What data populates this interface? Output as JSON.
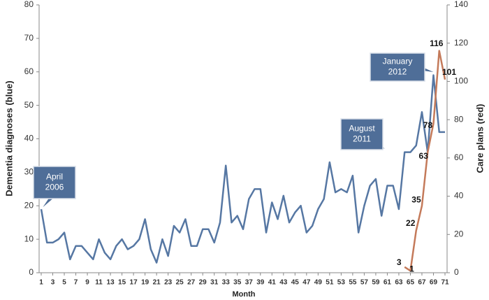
{
  "chart_data": {
    "type": "line",
    "x": [
      1,
      2,
      3,
      4,
      5,
      6,
      7,
      8,
      9,
      10,
      11,
      12,
      13,
      14,
      15,
      16,
      17,
      18,
      19,
      20,
      21,
      22,
      23,
      24,
      25,
      26,
      27,
      28,
      29,
      30,
      31,
      32,
      33,
      34,
      35,
      36,
      37,
      38,
      39,
      40,
      41,
      42,
      43,
      44,
      45,
      46,
      47,
      48,
      49,
      50,
      51,
      52,
      53,
      54,
      55,
      56,
      57,
      58,
      59,
      60,
      61,
      62,
      63,
      64,
      65,
      66,
      67,
      68,
      69,
      70,
      71
    ],
    "xlim": [
      1,
      71
    ],
    "xticks": [
      1,
      3,
      5,
      7,
      9,
      11,
      13,
      15,
      17,
      19,
      21,
      23,
      25,
      27,
      29,
      31,
      33,
      35,
      37,
      39,
      41,
      43,
      45,
      47,
      49,
      51,
      53,
      55,
      57,
      59,
      61,
      63,
      65,
      67,
      69,
      71
    ],
    "xlabel": "Month",
    "ylabel": "Dementia diagnoses (blue)",
    "y2label": "Care plans (red)",
    "ylim": [
      0,
      80
    ],
    "yticks": [
      0,
      10,
      20,
      30,
      40,
      50,
      60,
      70,
      80
    ],
    "y2lim": [
      0,
      140
    ],
    "y2ticks": [
      0,
      20,
      40,
      60,
      80,
      100,
      120,
      140
    ],
    "grid": false,
    "series": [
      {
        "name": "Dementia diagnoses",
        "color": "#5677a3",
        "values": [
          19,
          9,
          9,
          10,
          12,
          4,
          8,
          8,
          6,
          4,
          10,
          6,
          4,
          8,
          10,
          7,
          8,
          10,
          16,
          7,
          3,
          10,
          5,
          14,
          12,
          16,
          8,
          8,
          13,
          13,
          9,
          15,
          32,
          15,
          17,
          13,
          22,
          25,
          25,
          12,
          21,
          16,
          23,
          15,
          18,
          20,
          12,
          14,
          19,
          22,
          33,
          24,
          25,
          24,
          29,
          12,
          20,
          26,
          28,
          17,
          26,
          26,
          19,
          36,
          36,
          38,
          48,
          36,
          59,
          42,
          42
        ]
      },
      {
        "name": "Care plans",
        "color": "#c47a5a",
        "axis": "y2",
        "values": [
          null,
          null,
          null,
          null,
          null,
          null,
          null,
          null,
          null,
          null,
          null,
          null,
          null,
          null,
          null,
          null,
          null,
          null,
          null,
          null,
          null,
          null,
          null,
          null,
          null,
          null,
          null,
          null,
          null,
          null,
          null,
          null,
          null,
          null,
          null,
          null,
          null,
          null,
          null,
          null,
          null,
          null,
          null,
          null,
          null,
          null,
          null,
          null,
          null,
          null,
          null,
          null,
          null,
          null,
          null,
          null,
          null,
          null,
          null,
          null,
          null,
          null,
          null,
          3,
          1,
          22,
          35,
          63,
          78,
          116,
          101
        ]
      }
    ],
    "annotations": [
      {
        "lines": [
          "April",
          "2006"
        ]
      },
      {
        "lines": [
          "August",
          "2011"
        ]
      },
      {
        "lines": [
          "January",
          "2012"
        ]
      }
    ]
  }
}
